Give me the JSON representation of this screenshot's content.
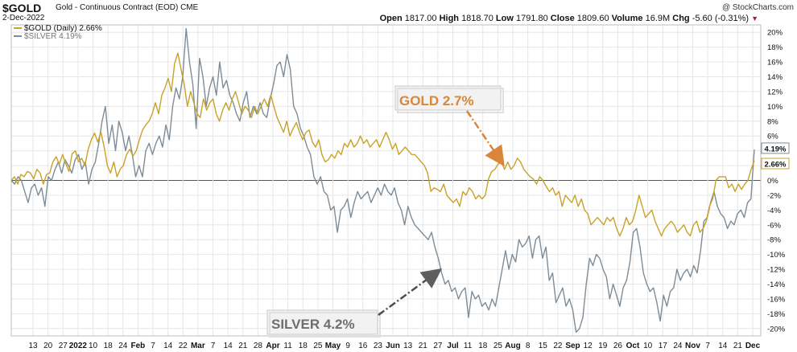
{
  "header": {
    "symbol": "$GOLD",
    "description": "Gold - Continuous Contract (EOD)",
    "exchange": "CME",
    "brand": "@ StockCharts.com",
    "date": "2-Dec-2022",
    "stats": [
      {
        "label": "Open",
        "value": "1817.00"
      },
      {
        "label": "High",
        "value": "1818.70"
      },
      {
        "label": "Low",
        "value": "1791.80"
      },
      {
        "label": "Close",
        "value": "1809.60"
      },
      {
        "label": "Volume",
        "value": "16.9M"
      },
      {
        "label": "Chg",
        "value": "-5.60 (-0.31%)"
      }
    ]
  },
  "colors": {
    "gold": "#c9a229",
    "silver": "#7e8c97",
    "gold_annotation": "#d9863a",
    "silver_annotation": "#6e6e6e",
    "grid": "#e6e6e6",
    "down_arrow": "#b0193b"
  },
  "chart_data": {
    "type": "line",
    "ylim": [
      -21,
      21
    ],
    "yticks": [
      20,
      18,
      16,
      14,
      12,
      10,
      8,
      6,
      4,
      2,
      0,
      -2,
      -4,
      -6,
      -8,
      -10,
      -12,
      -14,
      -16,
      -18,
      -20
    ],
    "ytick_labels": [
      "20%",
      "18%",
      "16%",
      "14%",
      "12%",
      "10%",
      "8%",
      "6%",
      "4%",
      "2%",
      "0%",
      "-2%",
      "-4%",
      "-6%",
      "-8%",
      "-10%",
      "-12%",
      "-14%",
      "-16%",
      "-18%",
      "-20%"
    ],
    "xticks": [
      {
        "label": "13",
        "bold": false
      },
      {
        "label": "20",
        "bold": false
      },
      {
        "label": "27",
        "bold": false
      },
      {
        "label": "2022",
        "bold": true
      },
      {
        "label": "10",
        "bold": false
      },
      {
        "label": "18",
        "bold": false
      },
      {
        "label": "24",
        "bold": false
      },
      {
        "label": "Feb",
        "bold": true
      },
      {
        "label": "7",
        "bold": false
      },
      {
        "label": "14",
        "bold": false
      },
      {
        "label": "22",
        "bold": false
      },
      {
        "label": "Mar",
        "bold": true
      },
      {
        "label": "7",
        "bold": false
      },
      {
        "label": "14",
        "bold": false
      },
      {
        "label": "21",
        "bold": false
      },
      {
        "label": "28",
        "bold": false
      },
      {
        "label": "Apr",
        "bold": true
      },
      {
        "label": "11",
        "bold": false
      },
      {
        "label": "18",
        "bold": false
      },
      {
        "label": "25",
        "bold": false
      },
      {
        "label": "May",
        "bold": true
      },
      {
        "label": "9",
        "bold": false
      },
      {
        "label": "16",
        "bold": false
      },
      {
        "label": "23",
        "bold": false
      },
      {
        "label": "Jun",
        "bold": true
      },
      {
        "label": "13",
        "bold": false
      },
      {
        "label": "21",
        "bold": false
      },
      {
        "label": "27",
        "bold": false
      },
      {
        "label": "Jul",
        "bold": true
      },
      {
        "label": "11",
        "bold": false
      },
      {
        "label": "18",
        "bold": false
      },
      {
        "label": "25",
        "bold": false
      },
      {
        "label": "Aug",
        "bold": true
      },
      {
        "label": "8",
        "bold": false
      },
      {
        "label": "15",
        "bold": false
      },
      {
        "label": "22",
        "bold": false
      },
      {
        "label": "Sep",
        "bold": true
      },
      {
        "label": "12",
        "bold": false
      },
      {
        "label": "19",
        "bold": false
      },
      {
        "label": "26",
        "bold": false
      },
      {
        "label": "Oct",
        "bold": true
      },
      {
        "label": "10",
        "bold": false
      },
      {
        "label": "17",
        "bold": false
      },
      {
        "label": "24",
        "bold": false
      },
      {
        "label": "Nov",
        "bold": true
      },
      {
        "label": "7",
        "bold": false
      },
      {
        "label": "14",
        "bold": false
      },
      {
        "label": "21",
        "bold": false
      },
      {
        "label": "Dec",
        "bold": true
      }
    ],
    "series": [
      {
        "name": "$GOLD (Daily) 2.66%",
        "legend_label": "$GOLD (Daily)",
        "legend_value": "2.66%",
        "last_label": "2.66%",
        "values": [
          0,
          0.5,
          -0.5,
          0.8,
          0.5,
          1.2,
          1.0,
          0.2,
          1.5,
          1.0,
          -0.5,
          0.8,
          1.0,
          2.5,
          3.2,
          2.2,
          3.5,
          2.3,
          1.2,
          3.6,
          4.0,
          2.5,
          3.0,
          2.0,
          4.2,
          5.5,
          6.4,
          5.2,
          6.5,
          4.5,
          2.0,
          1.0,
          2.5,
          0.5,
          1.5,
          2.0,
          3.5,
          4.2,
          3.3,
          4.0,
          5.5,
          6.8,
          7.5,
          8.0,
          9.0,
          10.5,
          9.0,
          11.5,
          12.5,
          13.8,
          12.0,
          15.8,
          17.2,
          15.0,
          13.0,
          10.0,
          12.0,
          10.5,
          9.0,
          8.5,
          11.0,
          9.5,
          10.5,
          11.0,
          9.0,
          8.0,
          9.5,
          10.5,
          9.5,
          11.0,
          12.0,
          10.5,
          9.0,
          10.0,
          9.5,
          8.5,
          10.0,
          9.0,
          10.0,
          11.0,
          10.0,
          11.5,
          10.0,
          8.5,
          7.5,
          6.5,
          8.0,
          6.0,
          7.0,
          7.8,
          6.5,
          5.5,
          6.5,
          6.8,
          5.2,
          4.5,
          5.5,
          3.5,
          2.5,
          2.8,
          3.5,
          3.0,
          4.0,
          3.5,
          5.0,
          4.5,
          5.5,
          4.5,
          5.0,
          6.0,
          5.0,
          5.5,
          4.5,
          5.0,
          5.5,
          4.5,
          5.5,
          6.5,
          5.5,
          4.2,
          5.0,
          3.5,
          4.0,
          4.5,
          4.0,
          3.5,
          3.5,
          3.0,
          2.5,
          2.0,
          1.0,
          -1.5,
          -1.0,
          -1.2,
          -1.5,
          -0.5,
          -2.0,
          -2.5,
          -3.0,
          -2.5,
          -3.5,
          -1.5,
          -2.0,
          -1.0,
          -1.5,
          -2.5,
          -2.0,
          -2.5,
          -2.0,
          0.2,
          1.2,
          1.5,
          2.2,
          2.5,
          1.5,
          2.5,
          1.5,
          2.0,
          3.0,
          2.5,
          1.5,
          1.0,
          0.5,
          0.2,
          -0.5,
          0.5,
          0,
          -0.8,
          -1.5,
          -1.0,
          -2.0,
          -1.5,
          -3.5,
          -2.0,
          -2.5,
          -3.0,
          -2.0,
          -3.5,
          -2.5,
          -4.0,
          -4.5,
          -6.0,
          -5.5,
          -5.0,
          -5.5,
          -6.0,
          -5.0,
          -5.5,
          -5.0,
          -6.5,
          -7.5,
          -6.5,
          -5.0,
          -6.0,
          -5.5,
          -4.0,
          -2.0,
          -3.5,
          -5.0,
          -4.5,
          -4.0,
          -5.5,
          -6.5,
          -7.5,
          -6.5,
          -6.0,
          -5.5,
          -6.0,
          -7.0,
          -6.5,
          -6.0,
          -7.0,
          -7.5,
          -6.0,
          -5.5,
          -7.0,
          -6.5,
          -5.5,
          -3.5,
          -2.5,
          0,
          0.5,
          0.5,
          0.5,
          -1.0,
          -0.5,
          -1.5,
          -0.5,
          -1.2,
          -0.5,
          0,
          1.5,
          2.66
        ]
      },
      {
        "name": "$SILVER 4.19%",
        "legend_label": "$SILVER",
        "legend_value": "4.19%",
        "last_label": "4.19%",
        "values": [
          0,
          -0.5,
          0.5,
          0,
          -1.5,
          -3.0,
          -1.0,
          -0.5,
          -2.0,
          -1.0,
          -3.5,
          0.5,
          0,
          1.5,
          2.5,
          1.0,
          2.8,
          2.0,
          1.0,
          2.8,
          3.5,
          1.5,
          2.5,
          -0.5,
          1.5,
          2.5,
          5.0,
          8.0,
          10.0,
          5.0,
          7.5,
          4.0,
          8.0,
          6.5,
          4.0,
          6.0,
          3.5,
          0.5,
          2.0,
          0.5,
          4.0,
          5.0,
          3.5,
          5.0,
          6.0,
          4.5,
          7.5,
          5.5,
          10.0,
          12.5,
          11.0,
          14.0,
          20.5,
          16.0,
          13.0,
          7.0,
          16.5,
          14.0,
          10.0,
          12.5,
          14.0,
          11.5,
          16.0,
          12.5,
          13.5,
          11.5,
          10.5,
          9.0,
          8.0,
          10.5,
          12.0,
          8.5,
          10.0,
          9.0,
          10.5,
          9.0,
          8.5,
          11.0,
          13.0,
          15.5,
          16.0,
          14.0,
          17.0,
          15.0,
          10.0,
          9.0,
          7.0,
          6.0,
          4.5,
          3.5,
          0.5,
          -0.5,
          0.5,
          -1.5,
          -2.0,
          -4.0,
          -3.5,
          -7.0,
          -4.0,
          -3.5,
          -2.5,
          -5.0,
          -3.0,
          -1.5,
          -2.5,
          -2.0,
          -1.5,
          -3.0,
          -2.0,
          -1.0,
          -2.0,
          -0.5,
          -1.5,
          -2.0,
          -1.0,
          -3.0,
          -4.0,
          -6.0,
          -3.5,
          -5.0,
          -6.0,
          -6.5,
          -7.0,
          -7.5,
          -8.0,
          -7.0,
          -9.0,
          -10.5,
          -12.5,
          -14.0,
          -13.5,
          -15.0,
          -14.5,
          -16.0,
          -15.0,
          -14.5,
          -18.5,
          -15.0,
          -16.0,
          -15.5,
          -17.0,
          -16.5,
          -17.5,
          -16.0,
          -17.0,
          -14.5,
          -12.0,
          -9.5,
          -12.0,
          -10.0,
          -11.0,
          -8.0,
          -9.0,
          -8.5,
          -7.5,
          -10.5,
          -8.0,
          -7.5,
          -10.5,
          -9.0,
          -13.5,
          -12.5,
          -16.5,
          -15.5,
          -14.5,
          -17.0,
          -16.0,
          -17.5,
          -20.5,
          -20.0,
          -18.5,
          -14.0,
          -10.5,
          -11.5,
          -10.0,
          -10.5,
          -12.0,
          -13.0,
          -16.0,
          -14.0,
          -15.5,
          -17.0,
          -14.5,
          -13.5,
          -11.0,
          -7.0,
          -6.5,
          -9.0,
          -12.5,
          -14.0,
          -15.0,
          -14.5,
          -16.5,
          -19.0,
          -15.5,
          -17.0,
          -15.0,
          -14.5,
          -12.0,
          -13.5,
          -12.5,
          -12.0,
          -13.0,
          -11.5,
          -12.5,
          -9.5,
          -5.5,
          -5.0,
          -3.0,
          -1.5,
          -3.5,
          -4.5,
          -5.0,
          -6.5,
          -5.5,
          -6.0,
          -4.5,
          -4.0,
          -5.0,
          -3.0,
          -2.5,
          4.19
        ]
      }
    ],
    "annotations": [
      {
        "name": "gold-annotation",
        "text": "GOLD 2.7%"
      },
      {
        "name": "silver-annotation",
        "text": "SILVER 4.2%"
      }
    ]
  }
}
